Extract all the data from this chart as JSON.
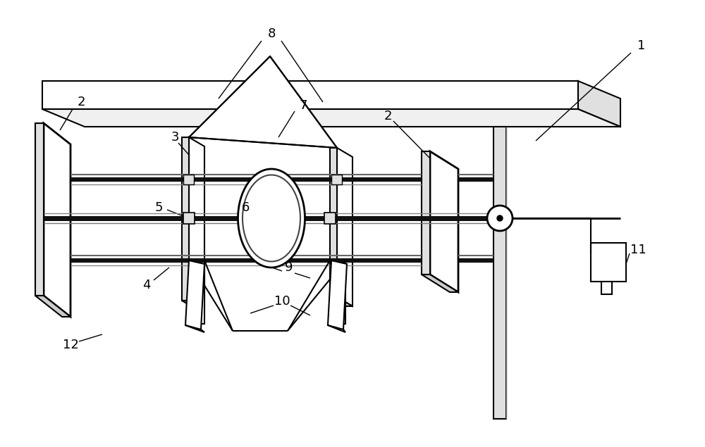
{
  "bg": "#ffffff",
  "lc": "#000000",
  "gray1": "#cccccc",
  "gray2": "#e0e0e0",
  "gray3": "#aaaaaa",
  "rod_color": "#1a1a1a",
  "lw": 1.5,
  "fs": 13
}
